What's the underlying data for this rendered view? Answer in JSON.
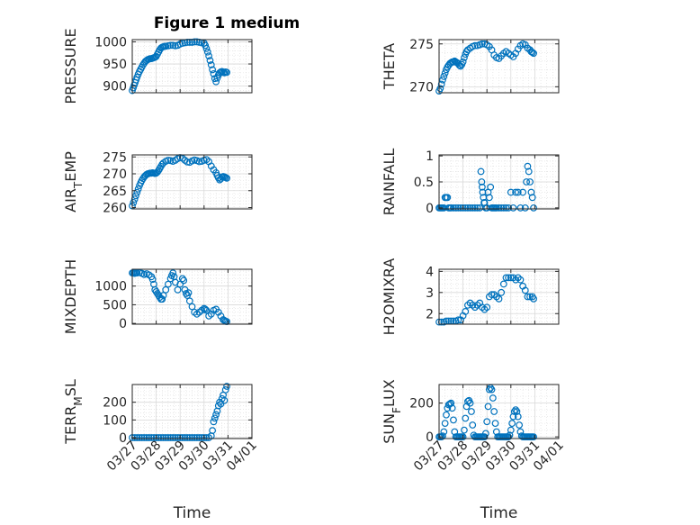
{
  "figure": {
    "title": "Figure 1 medium"
  },
  "colors": {
    "marker": "#0072bd",
    "axis": "#262626",
    "grid": "#d9d9d9"
  },
  "chart_data": [
    {
      "type": "scatter",
      "ylabel": "PRESSURE",
      "ylim": [
        885,
        1005
      ],
      "yticks": [
        900,
        950,
        1000
      ],
      "xlim": [
        0,
        5
      ],
      "xticks": [
        0,
        1,
        2,
        3,
        4,
        5
      ],
      "xticklabels": [
        "03/27",
        "03/28",
        "03/29",
        "03/30",
        "03/31",
        "04/01"
      ],
      "title": "Figure 1 medium",
      "xlabel": "",
      "grid": true,
      "x": [
        0.0,
        0.04,
        0.08,
        0.12,
        0.16,
        0.2,
        0.25,
        0.3,
        0.35,
        0.4,
        0.45,
        0.5,
        0.55,
        0.6,
        0.65,
        0.7,
        0.75,
        0.8,
        0.85,
        0.9,
        0.95,
        1.0,
        1.05,
        1.1,
        1.15,
        1.2,
        1.25,
        1.3,
        1.35,
        1.4,
        1.5,
        1.6,
        1.7,
        1.8,
        1.9,
        2.0,
        2.1,
        2.2,
        2.3,
        2.4,
        2.5,
        2.6,
        2.7,
        2.8,
        2.9,
        3.0,
        3.05,
        3.1,
        3.15,
        3.2,
        3.25,
        3.3,
        3.35,
        3.4,
        3.45,
        3.5,
        3.55,
        3.6,
        3.65,
        3.7,
        3.75,
        3.8,
        3.85,
        3.9,
        3.95
      ],
      "y": [
        890,
        896,
        902,
        908,
        914,
        920,
        927,
        933,
        938,
        943,
        948,
        952,
        956,
        958,
        960,
        961,
        962,
        962,
        963,
        964,
        965,
        967,
        972,
        977,
        982,
        986,
        988,
        989,
        990,
        990,
        991,
        992,
        992,
        991,
        992,
        995,
        997,
        998,
        999,
        999,
        999,
        1000,
        1000,
        999,
        998,
        997,
        992,
        985,
        977,
        968,
        958,
        948,
        937,
        928,
        917,
        910,
        918,
        925,
        930,
        932,
        933,
        931,
        930,
        932,
        931
      ]
    },
    {
      "type": "scatter",
      "ylabel": "THETA",
      "ylim": [
        269.3,
        275.5
      ],
      "yticks": [
        270,
        275
      ],
      "xlim": [
        0,
        5
      ],
      "xticks": [
        0,
        1,
        2,
        3,
        4,
        5
      ],
      "xticklabels": [
        "03/27",
        "03/28",
        "03/29",
        "03/30",
        "03/31",
        "04/01"
      ],
      "xlabel": "",
      "grid": true,
      "x": [
        0.0,
        0.05,
        0.1,
        0.15,
        0.2,
        0.25,
        0.3,
        0.35,
        0.4,
        0.45,
        0.5,
        0.55,
        0.6,
        0.65,
        0.7,
        0.75,
        0.8,
        0.85,
        0.9,
        0.95,
        1.0,
        1.05,
        1.1,
        1.15,
        1.2,
        1.3,
        1.4,
        1.5,
        1.6,
        1.7,
        1.8,
        1.9,
        2.0,
        2.1,
        2.2,
        2.3,
        2.4,
        2.5,
        2.6,
        2.7,
        2.8,
        2.9,
        3.0,
        3.1,
        3.2,
        3.3,
        3.4,
        3.5,
        3.6,
        3.7,
        3.8,
        3.85,
        3.9,
        3.95
      ],
      "y": [
        269.5,
        269.8,
        270.3,
        270.8,
        271.2,
        271.6,
        272.0,
        272.3,
        272.5,
        272.7,
        272.8,
        272.9,
        272.9,
        273.0,
        272.9,
        272.8,
        272.7,
        272.5,
        272.4,
        272.6,
        272.9,
        273.4,
        273.8,
        274.1,
        274.3,
        274.5,
        274.7,
        274.8,
        274.8,
        274.9,
        275.0,
        275.0,
        274.9,
        274.7,
        274.3,
        273.7,
        273.4,
        273.3,
        273.6,
        273.9,
        274.1,
        273.9,
        273.7,
        273.5,
        273.9,
        274.4,
        274.8,
        275.0,
        274.9,
        274.5,
        274.3,
        274.1,
        274.0,
        273.9
      ]
    },
    {
      "type": "scatter",
      "ylabel": "AIR_TEMP",
      "ylim": [
        259.6,
        275.6
      ],
      "yticks": [
        260,
        265,
        270,
        275
      ],
      "xlim": [
        0,
        5
      ],
      "xticks": [
        0,
        1,
        2,
        3,
        4,
        5
      ],
      "xticklabels": [
        "03/27",
        "03/28",
        "03/29",
        "03/30",
        "03/31",
        "04/01"
      ],
      "xlabel": "",
      "grid": true,
      "x": [
        0.0,
        0.05,
        0.1,
        0.15,
        0.2,
        0.25,
        0.3,
        0.35,
        0.4,
        0.45,
        0.5,
        0.55,
        0.6,
        0.65,
        0.7,
        0.75,
        0.8,
        0.85,
        0.9,
        0.95,
        1.0,
        1.05,
        1.1,
        1.15,
        1.2,
        1.25,
        1.3,
        1.4,
        1.5,
        1.6,
        1.7,
        1.8,
        1.9,
        2.0,
        2.1,
        2.2,
        2.3,
        2.4,
        2.5,
        2.6,
        2.7,
        2.8,
        2.9,
        3.0,
        3.1,
        3.2,
        3.3,
        3.4,
        3.5,
        3.55,
        3.6,
        3.65,
        3.7,
        3.75,
        3.8,
        3.85,
        3.9,
        3.95
      ],
      "y": [
        260.5,
        261.5,
        262.5,
        263.5,
        264.5,
        265.5,
        266.5,
        267.3,
        268.0,
        268.6,
        269.1,
        269.5,
        269.8,
        270.0,
        270.1,
        270.2,
        270.2,
        270.3,
        270.2,
        270.1,
        270.2,
        270.5,
        271.0,
        271.6,
        272.2,
        272.8,
        273.2,
        273.7,
        274.0,
        273.9,
        273.7,
        274.0,
        274.5,
        274.8,
        274.6,
        274.0,
        273.5,
        273.4,
        273.8,
        274.1,
        273.9,
        273.6,
        273.7,
        274.0,
        274.2,
        273.6,
        272.3,
        271.2,
        270.3,
        269.5,
        268.8,
        268.2,
        268.5,
        269.0,
        269.2,
        269.1,
        268.9,
        268.7
      ]
    },
    {
      "type": "scatter",
      "ylabel": "RAINFALL",
      "ylim": [
        -0.02,
        1.02
      ],
      "yticks": [
        0,
        0.5,
        1
      ],
      "xlim": [
        0,
        5
      ],
      "xticks": [
        0,
        1,
        2,
        3,
        4,
        5
      ],
      "xticklabels": [
        "03/27",
        "03/28",
        "03/29",
        "03/30",
        "03/31",
        "04/01"
      ],
      "xlabel": "",
      "grid": true,
      "x": [
        0.0,
        0.05,
        0.1,
        0.15,
        0.2,
        0.25,
        0.3,
        0.35,
        0.4,
        0.45,
        0.5,
        0.6,
        0.7,
        0.8,
        0.9,
        1.0,
        1.1,
        1.2,
        1.3,
        1.4,
        1.5,
        1.6,
        1.7,
        1.75,
        1.78,
        1.8,
        1.82,
        1.85,
        1.88,
        1.9,
        1.95,
        2.0,
        2.05,
        2.1,
        2.15,
        2.2,
        2.25,
        2.3,
        2.35,
        2.4,
        2.5,
        2.6,
        2.7,
        2.8,
        2.9,
        3.0,
        3.1,
        3.2,
        3.3,
        3.4,
        3.5,
        3.6,
        3.65,
        3.7,
        3.75,
        3.8,
        3.85,
        3.9,
        3.95
      ],
      "y": [
        0,
        0,
        0,
        0,
        0,
        0.2,
        0.2,
        0.2,
        0,
        0,
        0,
        0,
        0,
        0,
        0,
        0,
        0,
        0,
        0,
        0,
        0,
        0,
        0,
        0.7,
        0.5,
        0.4,
        0.3,
        0.2,
        0.1,
        0.1,
        0,
        0,
        0.3,
        0.2,
        0.4,
        0,
        0,
        0,
        0,
        0,
        0,
        0,
        0,
        0,
        0,
        0.3,
        0,
        0.3,
        0.3,
        0,
        0.3,
        0,
        0.5,
        0.8,
        0.7,
        0.5,
        0.3,
        0.2,
        0
      ]
    },
    {
      "type": "scatter",
      "ylabel": "MIXDEPTH",
      "ylim": [
        -20,
        1450
      ],
      "yticks": [
        0,
        500,
        1000
      ],
      "xlim": [
        0,
        5
      ],
      "xticks": [
        0,
        1,
        2,
        3,
        4,
        5
      ],
      "xticklabels": [
        "03/27",
        "03/28",
        "03/29",
        "03/30",
        "03/31",
        "04/01"
      ],
      "xlabel": "",
      "grid": true,
      "x": [
        0.0,
        0.05,
        0.1,
        0.15,
        0.2,
        0.3,
        0.4,
        0.5,
        0.6,
        0.7,
        0.8,
        0.85,
        0.9,
        0.95,
        1.0,
        1.05,
        1.1,
        1.15,
        1.2,
        1.25,
        1.3,
        1.4,
        1.5,
        1.6,
        1.65,
        1.7,
        1.75,
        1.8,
        1.9,
        2.0,
        2.1,
        2.15,
        2.2,
        2.25,
        2.3,
        2.35,
        2.4,
        2.5,
        2.6,
        2.7,
        2.8,
        2.9,
        3.0,
        3.05,
        3.1,
        3.2,
        3.3,
        3.4,
        3.5,
        3.6,
        3.7,
        3.8,
        3.85,
        3.9,
        3.95
      ],
      "y": [
        1350,
        1350,
        1340,
        1350,
        1350,
        1360,
        1340,
        1310,
        1330,
        1300,
        1250,
        1180,
        1050,
        900,
        850,
        800,
        750,
        700,
        650,
        650,
        750,
        900,
        1050,
        1200,
        1280,
        1350,
        1250,
        1100,
        900,
        1050,
        1200,
        1150,
        900,
        800,
        750,
        820,
        600,
        450,
        300,
        250,
        300,
        350,
        400,
        380,
        350,
        200,
        250,
        350,
        380,
        300,
        200,
        100,
        80,
        60,
        50
      ]
    },
    {
      "type": "scatter",
      "ylabel": "H2OMIXRA",
      "ylim": [
        1.5,
        4.1
      ],
      "yticks": [
        2,
        3,
        4
      ],
      "xlim": [
        0,
        5
      ],
      "xticks": [
        0,
        1,
        2,
        3,
        4,
        5
      ],
      "xticklabels": [
        "03/27",
        "03/28",
        "03/29",
        "03/30",
        "03/31",
        "04/01"
      ],
      "xlabel": "",
      "grid": true,
      "x": [
        0.0,
        0.1,
        0.2,
        0.3,
        0.4,
        0.5,
        0.6,
        0.7,
        0.8,
        0.9,
        1.0,
        1.1,
        1.2,
        1.3,
        1.4,
        1.5,
        1.6,
        1.7,
        1.8,
        1.9,
        2.0,
        2.1,
        2.2,
        2.3,
        2.4,
        2.5,
        2.6,
        2.7,
        2.8,
        2.9,
        3.0,
        3.1,
        3.2,
        3.3,
        3.4,
        3.5,
        3.6,
        3.7,
        3.8,
        3.9,
        3.95
      ],
      "y": [
        1.6,
        1.6,
        1.6,
        1.65,
        1.65,
        1.65,
        1.65,
        1.65,
        1.7,
        1.7,
        1.9,
        2.1,
        2.4,
        2.5,
        2.4,
        2.3,
        2.4,
        2.5,
        2.3,
        2.2,
        2.3,
        2.8,
        2.9,
        2.9,
        2.8,
        2.7,
        3.0,
        3.4,
        3.7,
        3.7,
        3.7,
        3.7,
        3.6,
        3.7,
        3.6,
        3.3,
        3.1,
        2.8,
        2.8,
        2.8,
        2.7
      ]
    },
    {
      "type": "scatter",
      "ylabel": "TERR_MSL",
      "ylim": [
        -5,
        300
      ],
      "yticks": [
        0,
        100,
        200
      ],
      "xlim": [
        0,
        5
      ],
      "xticks": [
        0,
        1,
        2,
        3,
        4,
        5
      ],
      "xticklabels": [
        "03/27",
        "03/28",
        "03/29",
        "03/30",
        "03/31",
        "04/01"
      ],
      "xlabel": "Time",
      "grid": true,
      "x": [
        0.0,
        0.1,
        0.2,
        0.3,
        0.4,
        0.5,
        0.6,
        0.7,
        0.8,
        0.9,
        1.0,
        1.1,
        1.2,
        1.3,
        1.4,
        1.5,
        1.6,
        1.7,
        1.8,
        1.9,
        2.0,
        2.1,
        2.2,
        2.3,
        2.4,
        2.5,
        2.6,
        2.7,
        2.8,
        2.9,
        3.0,
        3.1,
        3.2,
        3.3,
        3.35,
        3.4,
        3.45,
        3.5,
        3.55,
        3.6,
        3.65,
        3.7,
        3.75,
        3.8,
        3.85,
        3.9,
        3.95
      ],
      "y": [
        0,
        0,
        0,
        0,
        0,
        0,
        0,
        0,
        0,
        0,
        0,
        0,
        0,
        0,
        0,
        0,
        0,
        0,
        0,
        0,
        0,
        0,
        0,
        0,
        0,
        0,
        0,
        0,
        0,
        0,
        0,
        0,
        0,
        10,
        40,
        90,
        110,
        130,
        150,
        180,
        200,
        190,
        220,
        240,
        210,
        270,
        290
      ]
    },
    {
      "type": "scatter",
      "ylabel": "SUN_FLUX",
      "ylim": [
        -10,
        310
      ],
      "yticks": [
        0,
        200
      ],
      "xlim": [
        0,
        5
      ],
      "xticks": [
        0,
        1,
        2,
        3,
        4,
        5
      ],
      "xticklabels": [
        "03/27",
        "03/28",
        "03/29",
        "03/30",
        "03/31",
        "04/01"
      ],
      "xlabel": "Time",
      "grid": true,
      "x": [
        0.0,
        0.05,
        0.1,
        0.15,
        0.2,
        0.25,
        0.3,
        0.35,
        0.4,
        0.45,
        0.5,
        0.55,
        0.6,
        0.65,
        0.7,
        0.75,
        0.8,
        0.85,
        0.9,
        0.95,
        1.0,
        1.05,
        1.1,
        1.15,
        1.2,
        1.25,
        1.3,
        1.35,
        1.4,
        1.45,
        1.5,
        1.55,
        1.6,
        1.65,
        1.7,
        1.75,
        1.8,
        1.85,
        1.9,
        1.95,
        2.0,
        2.05,
        2.1,
        2.15,
        2.2,
        2.25,
        2.3,
        2.35,
        2.4,
        2.45,
        2.5,
        2.55,
        2.6,
        2.65,
        2.7,
        2.75,
        2.8,
        2.85,
        2.9,
        2.95,
        3.0,
        3.05,
        3.1,
        3.15,
        3.2,
        3.25,
        3.3,
        3.35,
        3.4,
        3.45,
        3.5,
        3.55,
        3.6,
        3.65,
        3.7,
        3.75,
        3.8,
        3.85,
        3.9,
        3.95
      ],
      "y": [
        0,
        0,
        0,
        5,
        30,
        80,
        130,
        170,
        190,
        195,
        200,
        170,
        100,
        30,
        0,
        0,
        0,
        0,
        0,
        0,
        0,
        40,
        110,
        180,
        210,
        215,
        200,
        150,
        70,
        10,
        0,
        0,
        0,
        0,
        0,
        0,
        0,
        0,
        0,
        20,
        90,
        180,
        280,
        290,
        280,
        230,
        150,
        80,
        30,
        0,
        0,
        0,
        0,
        0,
        0,
        0,
        0,
        0,
        0,
        10,
        40,
        80,
        120,
        150,
        160,
        150,
        120,
        70,
        30,
        5,
        0,
        0,
        0,
        0,
        0,
        0,
        0,
        0,
        0,
        0
      ]
    }
  ]
}
